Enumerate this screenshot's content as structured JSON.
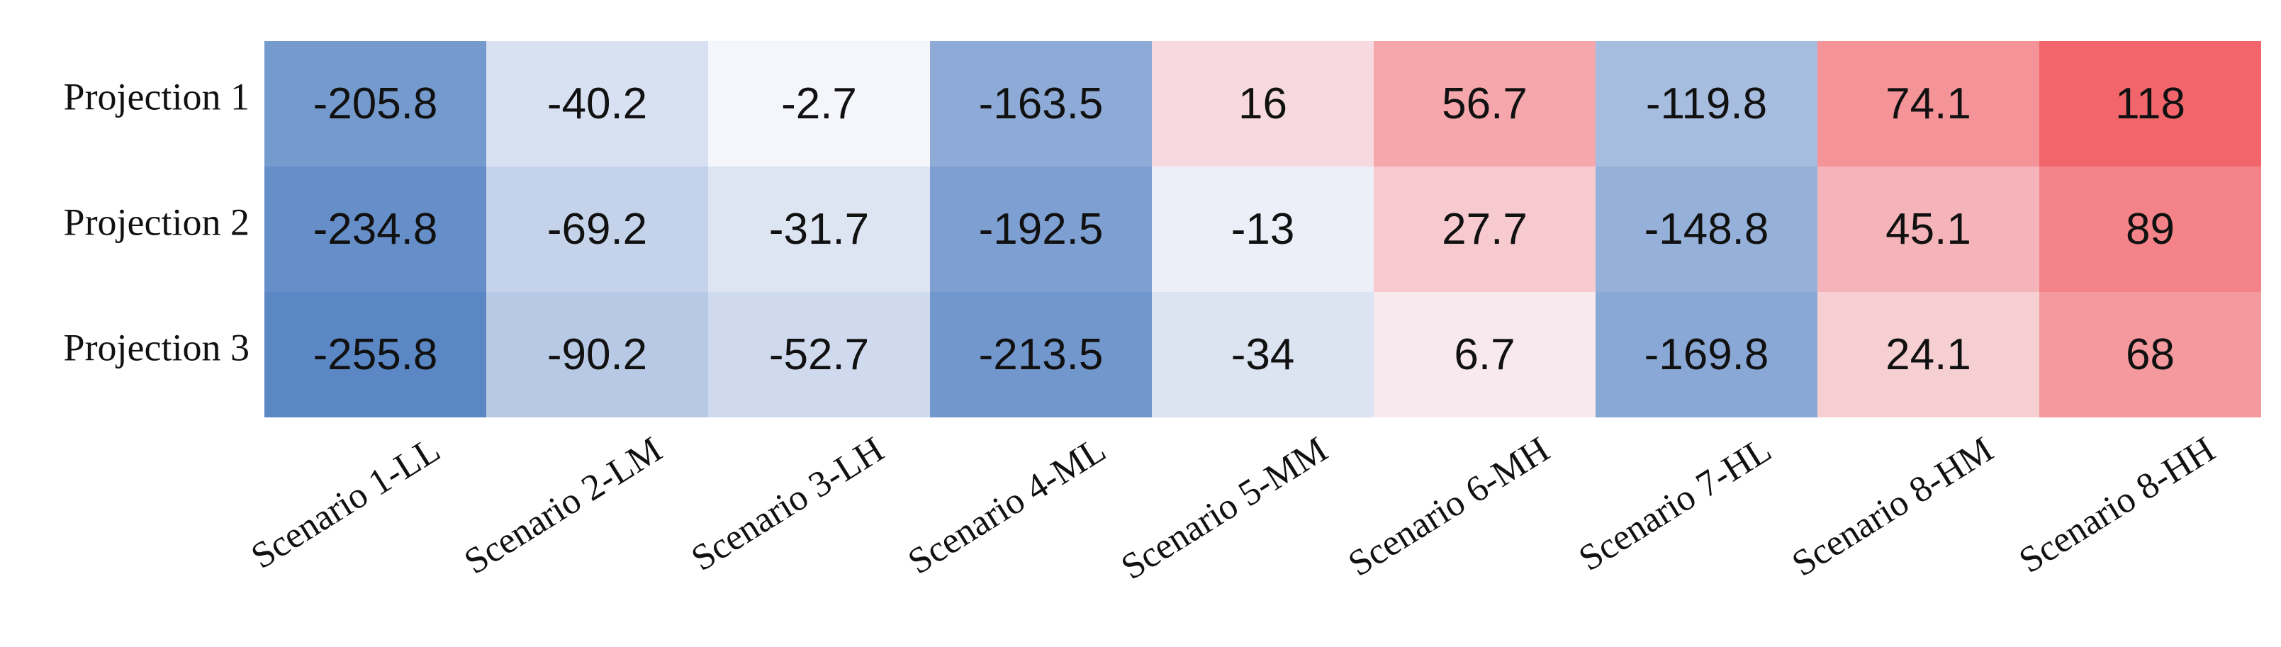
{
  "chart_data": {
    "type": "heatmap",
    "title": "",
    "xlabel": "",
    "ylabel": "",
    "rows": [
      "Projection 1",
      "Projection 2",
      "Projection 3"
    ],
    "columns": [
      "Scenario 1-LL",
      "Scenario 2-LM",
      "Scenario 3-LH",
      "Scenario 4-ML",
      "Scenario 5-MM",
      "Scenario 6-MH",
      "Scenario 7-HL",
      "Scenario 8-HM",
      "Scenario 8-HH"
    ],
    "values": [
      [
        -205.8,
        -40.2,
        -2.7,
        -163.5,
        16,
        56.7,
        -119.8,
        74.1,
        118
      ],
      [
        -234.8,
        -69.2,
        -31.7,
        -192.5,
        -13,
        27.7,
        -148.8,
        45.1,
        89
      ],
      [
        -255.8,
        -90.2,
        -52.7,
        -213.5,
        -34,
        6.7,
        -169.8,
        24.1,
        68
      ]
    ],
    "value_labels": [
      [
        "-205.8",
        "-40.2",
        "-2.7",
        "-163.5",
        "16",
        "56.7",
        "-119.8",
        "74.1",
        "118"
      ],
      [
        "-234.8",
        "-69.2",
        "-31.7",
        "-192.5",
        "-13",
        "27.7",
        "-148.8",
        "45.1",
        "89"
      ],
      [
        "-255.8",
        "-90.2",
        "-52.7",
        "-213.5",
        "-34",
        "6.7",
        "-169.8",
        "24.1",
        "68"
      ]
    ],
    "color_scale": {
      "min": -255.8,
      "max": 118,
      "low_color": "#5b87c5",
      "mid_color": "#f8f8fc",
      "high_color": "#f2666b"
    },
    "legend": "none",
    "grid": false
  }
}
